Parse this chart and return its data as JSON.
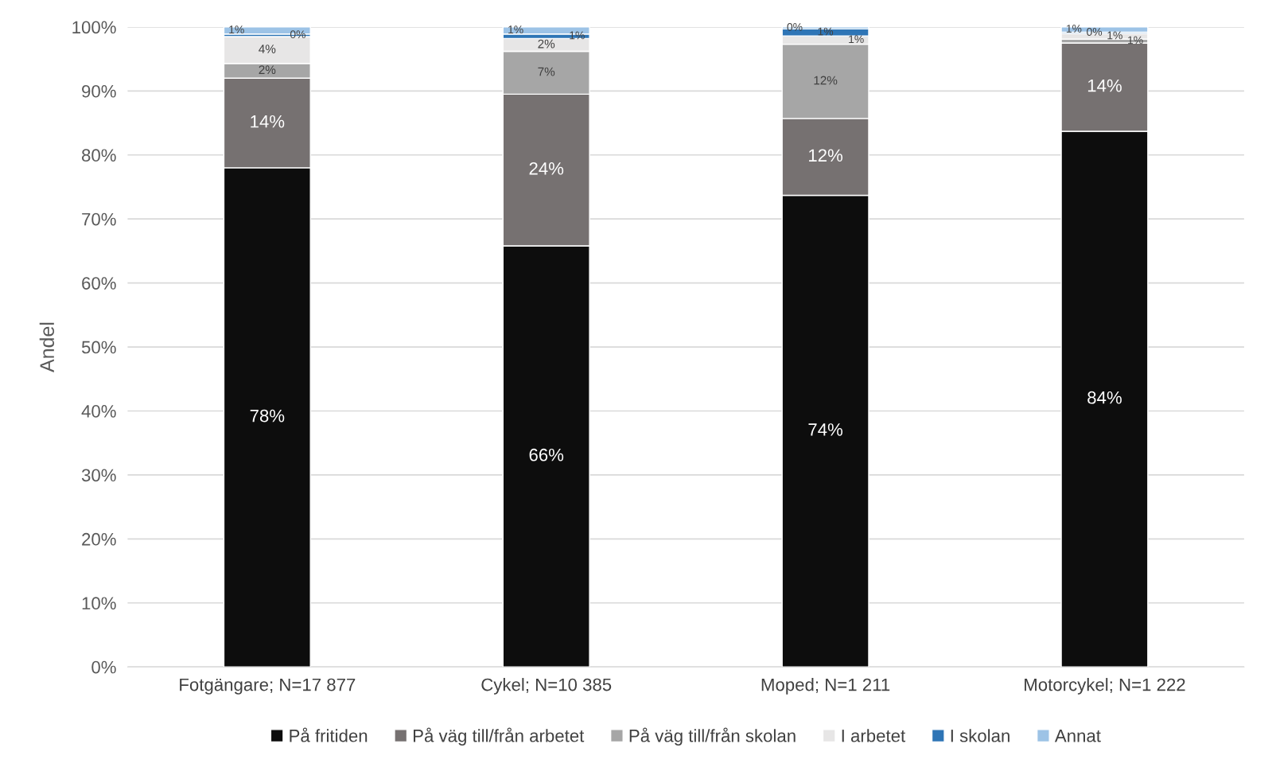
{
  "chart_data": {
    "type": "bar",
    "stacked": true,
    "ylabel": "Andel",
    "categories": [
      "Fotgängare; N=17 877",
      "Cykel; N=10 385",
      "Moped; N=1 211",
      "Motorcykel; N=1 222"
    ],
    "series": [
      {
        "name": "På fritiden",
        "color": "#0d0d0d",
        "values": [
          78.0,
          65.8,
          73.7,
          83.7
        ],
        "value_labels": [
          "78%",
          "66%",
          "74%",
          "84%"
        ]
      },
      {
        "name": "På väg till/från arbetet",
        "color": "#767171",
        "values": [
          14.0,
          23.7,
          12.0,
          13.8
        ],
        "value_labels": [
          "14%",
          "24%",
          "12%",
          "14%"
        ]
      },
      {
        "name": "På väg till/från skolan",
        "color": "#a6a6a6",
        "values": [
          2.3,
          6.7,
          11.6,
          0.6
        ],
        "value_labels": [
          "2%",
          "7%",
          "12%",
          "1%"
        ]
      },
      {
        "name": "I arbetet",
        "color": "#e7e6e6",
        "values": [
          4.2,
          2.0,
          1.3,
          0.9
        ],
        "value_labels": [
          "4%",
          "2%",
          "1%",
          "1%"
        ]
      },
      {
        "name": "I skolan",
        "color": "#2e75b6",
        "values": [
          0.4,
          0.7,
          1.1,
          0.2
        ],
        "value_labels": [
          "0%",
          "1%",
          "1%",
          "0%"
        ]
      },
      {
        "name": "Annat",
        "color": "#9dc3e6",
        "values": [
          1.1,
          1.1,
          0.3,
          0.8
        ],
        "value_labels": [
          "1%",
          "1%",
          "0%",
          "1%"
        ]
      }
    ],
    "ylim": [
      0,
      100
    ],
    "yticks": [
      {
        "value": 0,
        "label": "0%"
      },
      {
        "value": 10,
        "label": "10%"
      },
      {
        "value": 20,
        "label": "20%"
      },
      {
        "value": 30,
        "label": "30%"
      },
      {
        "value": 40,
        "label": "40%"
      },
      {
        "value": 50,
        "label": "50%"
      },
      {
        "value": 60,
        "label": "60%"
      },
      {
        "value": 70,
        "label": "70%"
      },
      {
        "value": 80,
        "label": "80%"
      },
      {
        "value": 90,
        "label": "90%"
      },
      {
        "value": 100,
        "label": "100%"
      }
    ],
    "grid": "y",
    "legend": "bottom"
  }
}
